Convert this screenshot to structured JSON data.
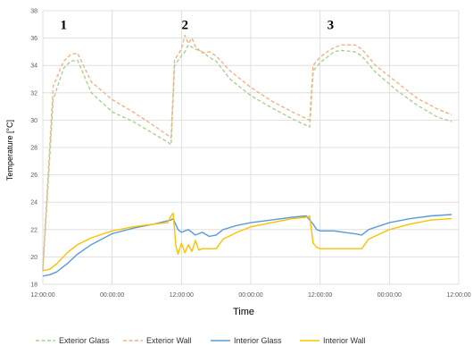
{
  "chart_data": {
    "type": "line",
    "title": "",
    "xlabel": "Time",
    "ylabel": "Temperature [°C]",
    "ylim": [
      18,
      38
    ],
    "yticks": [
      "18",
      "20",
      "22",
      "24",
      "26",
      "28",
      "30",
      "32",
      "34",
      "36",
      "38"
    ],
    "xlim": [
      0,
      6
    ],
    "xticks": [
      "12:00:00",
      "00:00:00",
      "12:00:00",
      "00:00:00",
      "12:00:00",
      "00:00:00",
      "12:00:00"
    ],
    "grid": true,
    "legend_position": "bottom",
    "annotations": [
      {
        "text": "1",
        "x": 0.3,
        "y": 37
      },
      {
        "text": "2",
        "x": 2.05,
        "y": 37
      },
      {
        "text": "3",
        "x": 4.15,
        "y": 37
      }
    ],
    "series": [
      {
        "name": "Exterior Glass",
        "color": "#a9d18e",
        "dash": "dashed",
        "x": [
          0.0,
          0.15,
          0.3,
          0.4,
          0.5,
          0.7,
          1.0,
          1.3,
          1.6,
          1.8,
          1.85,
          1.9,
          2.0,
          2.05,
          2.1,
          2.2,
          2.3,
          2.4,
          2.5,
          2.7,
          3.0,
          3.3,
          3.6,
          3.85,
          3.9,
          4.0,
          4.1,
          4.2,
          4.3,
          4.5,
          4.6,
          4.8,
          5.1,
          5.4,
          5.7,
          5.9
        ],
        "values": [
          19.0,
          31.5,
          33.8,
          34.3,
          34.4,
          32.0,
          30.6,
          29.9,
          29.0,
          28.4,
          28.2,
          34.0,
          34.7,
          35.0,
          35.5,
          35.2,
          35.0,
          34.6,
          34.3,
          33.0,
          31.8,
          30.9,
          30.1,
          29.5,
          33.6,
          34.2,
          34.6,
          35.0,
          35.1,
          35.0,
          34.7,
          33.5,
          32.2,
          31.1,
          30.2,
          29.9
        ]
      },
      {
        "name": "Exterior Wall",
        "color": "#f4b183",
        "dash": "dashed",
        "x": [
          0.0,
          0.15,
          0.3,
          0.4,
          0.5,
          0.7,
          1.0,
          1.3,
          1.6,
          1.8,
          1.85,
          1.9,
          2.0,
          2.05,
          2.1,
          2.15,
          2.2,
          2.3,
          2.4,
          2.5,
          2.7,
          3.0,
          3.3,
          3.6,
          3.85,
          3.9,
          4.0,
          4.1,
          4.2,
          4.3,
          4.5,
          4.6,
          4.8,
          5.1,
          5.4,
          5.7,
          5.9
        ],
        "values": [
          19.2,
          32.5,
          34.3,
          34.8,
          34.9,
          32.8,
          31.5,
          30.6,
          29.6,
          28.9,
          28.7,
          34.4,
          35.2,
          36.2,
          35.6,
          36.0,
          35.4,
          34.9,
          35.0,
          34.7,
          33.6,
          32.4,
          31.4,
          30.6,
          30.0,
          34.0,
          34.6,
          35.0,
          35.3,
          35.5,
          35.5,
          35.2,
          34.0,
          32.8,
          31.6,
          30.8,
          30.4
        ]
      },
      {
        "name": "Interior Glass",
        "color": "#5b9bd5",
        "dash": "solid",
        "x": [
          0.0,
          0.1,
          0.2,
          0.35,
          0.5,
          0.7,
          1.0,
          1.3,
          1.6,
          1.85,
          1.88,
          1.95,
          2.0,
          2.1,
          2.2,
          2.3,
          2.4,
          2.5,
          2.6,
          2.8,
          3.0,
          3.3,
          3.6,
          3.8,
          3.9,
          3.95,
          4.0,
          4.1,
          4.2,
          4.35,
          4.5,
          4.6,
          4.7,
          5.0,
          5.3,
          5.6,
          5.9
        ],
        "values": [
          18.6,
          18.7,
          18.9,
          19.5,
          20.2,
          20.9,
          21.7,
          22.1,
          22.4,
          22.7,
          22.8,
          22.0,
          21.8,
          22.0,
          21.6,
          21.8,
          21.5,
          21.6,
          22.0,
          22.3,
          22.5,
          22.7,
          22.9,
          23.0,
          22.4,
          22.0,
          21.9,
          21.9,
          21.9,
          21.8,
          21.7,
          21.6,
          22.0,
          22.5,
          22.8,
          23.0,
          23.1
        ]
      },
      {
        "name": "Interior Wall",
        "color": "#ffc000",
        "dash": "solid",
        "x": [
          0.0,
          0.1,
          0.2,
          0.35,
          0.5,
          0.7,
          1.0,
          1.3,
          1.6,
          1.8,
          1.85,
          1.88,
          1.92,
          1.95,
          2.0,
          2.05,
          2.1,
          2.15,
          2.2,
          2.25,
          2.3,
          2.4,
          2.5,
          2.6,
          2.8,
          3.0,
          3.3,
          3.6,
          3.8,
          3.85,
          3.9,
          3.95,
          4.0,
          4.1,
          4.3,
          4.5,
          4.6,
          4.7,
          5.0,
          5.3,
          5.6,
          5.9
        ],
        "values": [
          19.0,
          19.1,
          19.5,
          20.3,
          20.9,
          21.4,
          21.9,
          22.2,
          22.4,
          22.5,
          23.0,
          23.2,
          20.8,
          20.2,
          21.0,
          20.3,
          20.9,
          20.4,
          21.2,
          20.5,
          20.6,
          20.6,
          20.6,
          21.3,
          21.8,
          22.2,
          22.5,
          22.8,
          22.9,
          23.0,
          21.0,
          20.7,
          20.6,
          20.6,
          20.6,
          20.6,
          20.6,
          21.3,
          22.0,
          22.4,
          22.7,
          22.8
        ]
      }
    ]
  }
}
